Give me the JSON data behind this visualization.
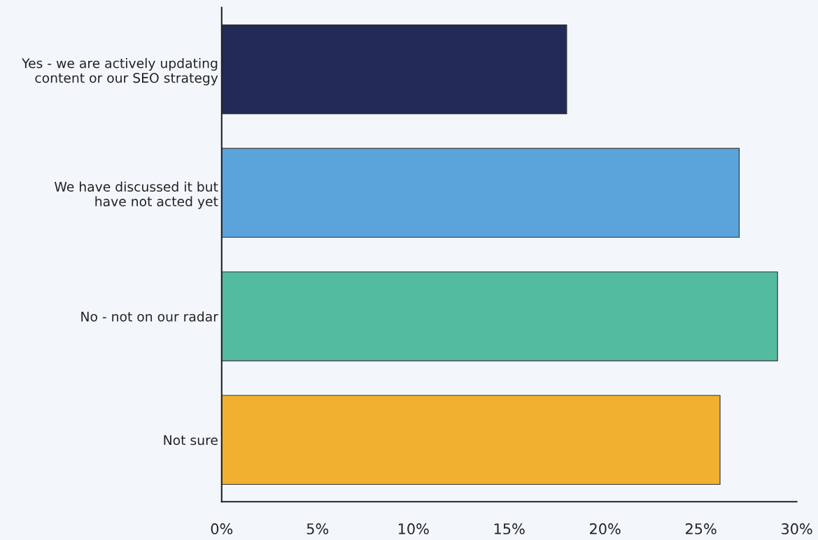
{
  "chart_data": {
    "type": "bar",
    "orientation": "horizontal",
    "categories": [
      "Yes - we are actively updating\ncontent or our SEO strategy",
      "We have discussed it but\nhave not acted yet",
      "No - not on our radar",
      "Not sure"
    ],
    "values": [
      18,
      27,
      29,
      26
    ],
    "colors": [
      "#222a57",
      "#5aa3db",
      "#52bba0",
      "#f0b030"
    ],
    "xlim": [
      0,
      30
    ],
    "xticks": [
      {
        "value": 0,
        "label": "0%"
      },
      {
        "value": 5,
        "label": "5%"
      },
      {
        "value": 10,
        "label": "10%"
      },
      {
        "value": 15,
        "label": "15%"
      },
      {
        "value": 20,
        "label": "20%"
      },
      {
        "value": 25,
        "label": "25%"
      },
      {
        "value": 30,
        "label": "30%"
      }
    ],
    "grid": false,
    "legend": false
  }
}
